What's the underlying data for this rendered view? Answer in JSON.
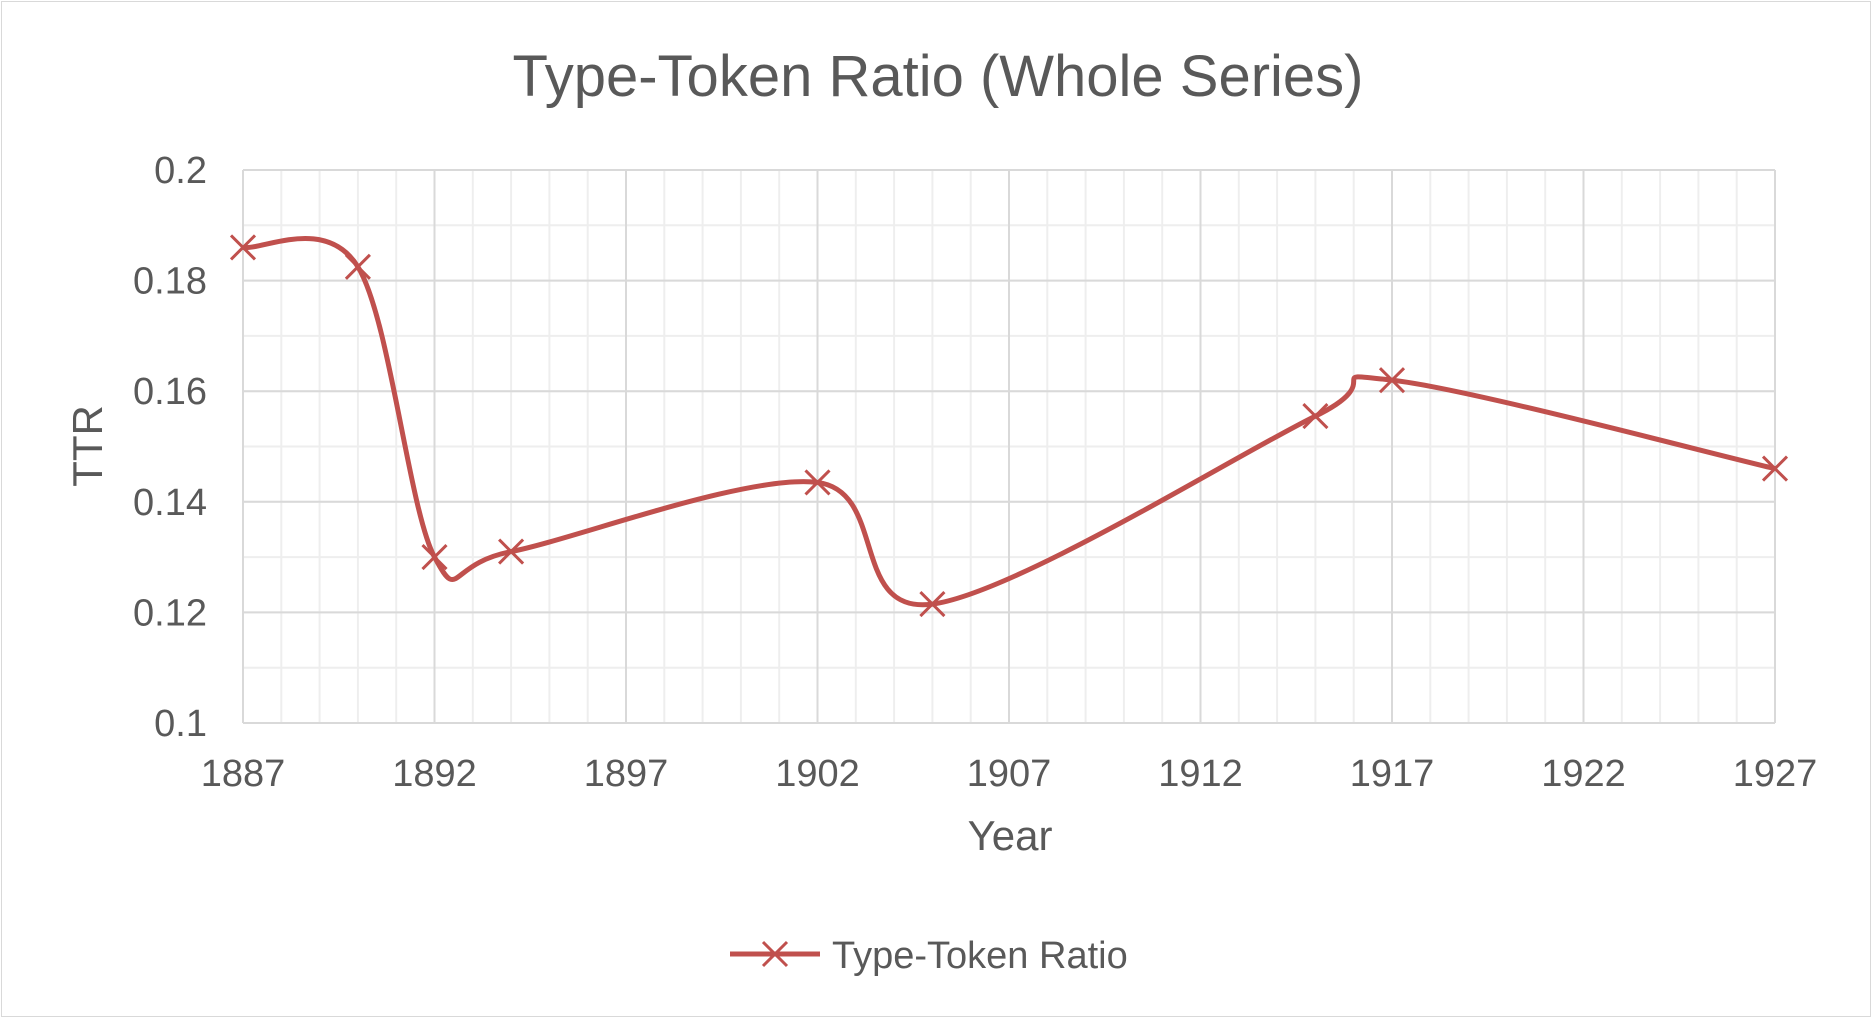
{
  "chart_data": {
    "type": "line",
    "title": "Type-Token Ratio (Whole Series)",
    "xlabel": "Year",
    "ylabel": "TTR",
    "xlim": [
      1887,
      1927
    ],
    "ylim": [
      0.1,
      0.2
    ],
    "x_ticks": [
      "1887",
      "1892",
      "1897",
      "1902",
      "1907",
      "1912",
      "1917",
      "1922",
      "1927"
    ],
    "y_ticks": [
      "0.1",
      "0.12",
      "0.14",
      "0.16",
      "0.18",
      "0.2"
    ],
    "grid": true,
    "legend_position": "bottom",
    "smoothed": true,
    "series": [
      {
        "name": "Type-Token Ratio",
        "color": "#c0504d",
        "marker": "x",
        "points": [
          {
            "x": 1887,
            "y": 0.186
          },
          {
            "x": 1890,
            "y": 0.1825
          },
          {
            "x": 1892,
            "y": 0.13
          },
          {
            "x": 1894,
            "y": 0.131
          },
          {
            "x": 1902,
            "y": 0.1435
          },
          {
            "x": 1905,
            "y": 0.1215
          },
          {
            "x": 1915,
            "y": 0.1555
          },
          {
            "x": 1917,
            "y": 0.162
          },
          {
            "x": 1927,
            "y": 0.146
          }
        ]
      }
    ]
  }
}
